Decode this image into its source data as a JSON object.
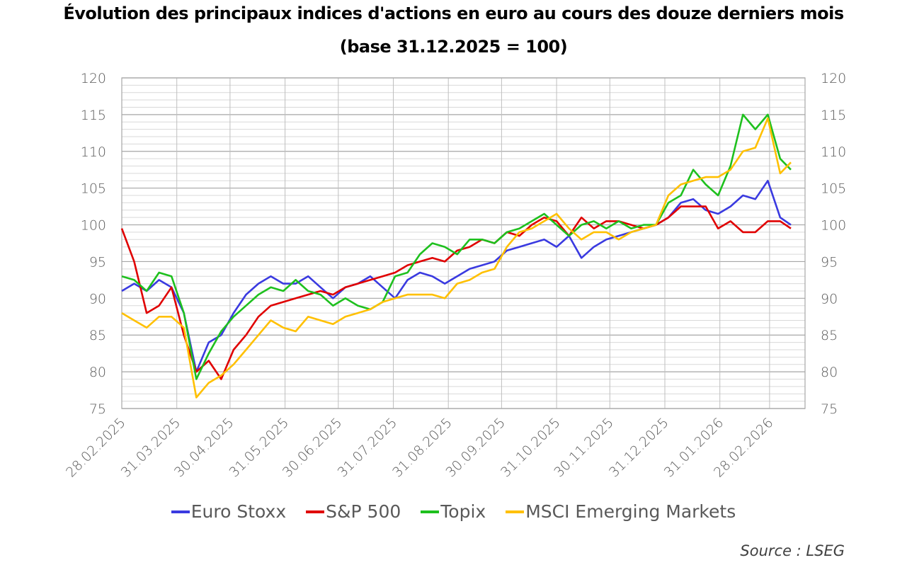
{
  "chart_data": {
    "type": "line",
    "title": "Évolution des principaux indices d'actions en euro au cours des douze derniers mois",
    "subtitle": "(base 31.12.2025 = 100)",
    "source": "Source : LSEG",
    "ylim": [
      75,
      120
    ],
    "y_ticks": [
      "75",
      "80",
      "85",
      "90",
      "95",
      "100",
      "105",
      "110",
      "115",
      "120"
    ],
    "y_axis": "both sides",
    "grid": "horizontal major every 5, minor every 1; vertical at month ends",
    "legend_position": "bottom",
    "x_ticks": [
      "28.02.2025",
      "31.03.2025",
      "30.04.2025",
      "31.05.2025",
      "30.06.2025",
      "31.07.2025",
      "31.08.2025",
      "30.09.2025",
      "31.10.2025",
      "30.11.2025",
      "31.12.2025",
      "31.01.2026",
      "28.02.2026"
    ],
    "x": [
      "28.02.2025",
      "07.03.2025",
      "14.03.2025",
      "21.03.2025",
      "28.03.2025",
      "04.04.2025",
      "11.04.2025",
      "18.04.2025",
      "25.04.2025",
      "02.05.2025",
      "09.05.2025",
      "16.05.2025",
      "23.05.2025",
      "30.05.2025",
      "06.06.2025",
      "13.06.2025",
      "20.06.2025",
      "27.06.2025",
      "04.07.2025",
      "11.07.2025",
      "18.07.2025",
      "25.07.2025",
      "01.08.2025",
      "08.08.2025",
      "15.08.2025",
      "22.08.2025",
      "29.08.2025",
      "05.09.2025",
      "12.09.2025",
      "19.09.2025",
      "26.09.2025",
      "03.10.2025",
      "10.10.2025",
      "17.10.2025",
      "24.10.2025",
      "31.10.2025",
      "07.11.2025",
      "14.11.2025",
      "21.11.2025",
      "28.11.2025",
      "05.12.2025",
      "12.12.2025",
      "19.12.2025",
      "26.12.2025",
      "02.01.2026",
      "09.01.2026",
      "16.01.2026",
      "23.01.2026",
      "30.01.2026",
      "06.02.2026",
      "13.02.2026",
      "20.02.2026",
      "27.02.2026",
      "06.03.2026",
      "12.03.2026"
    ],
    "series": [
      {
        "name": "Euro Stoxx",
        "color": "#3a3ae0",
        "values": [
          91,
          92,
          91,
          92.5,
          91.5,
          88,
          80,
          84,
          85,
          88,
          90.5,
          92,
          93,
          92,
          92,
          93,
          91.5,
          90,
          91.5,
          92,
          93,
          91.5,
          90,
          92.5,
          93.5,
          93,
          92,
          93,
          94,
          94.5,
          95,
          96.5,
          97,
          97.5,
          98,
          97,
          98.5,
          95.5,
          97,
          98,
          98.5,
          99,
          99.5,
          100,
          101,
          103,
          103.5,
          102,
          101.5,
          102.5,
          104,
          103.5,
          106,
          101,
          100
        ]
      },
      {
        "name": "S&P 500",
        "color": "#e00000",
        "values": [
          99.5,
          95,
          88,
          89,
          91.5,
          85,
          80,
          81.5,
          79,
          83,
          85,
          87.5,
          89,
          89.5,
          90,
          90.5,
          91,
          90.5,
          91.5,
          92,
          92.5,
          93,
          93.5,
          94.5,
          95,
          95.5,
          95,
          96.5,
          97,
          98,
          97.5,
          99,
          98.5,
          100,
          101,
          100.5,
          98.5,
          101,
          99.5,
          100.5,
          100.5,
          100,
          99.5,
          100,
          101,
          102.5,
          102.5,
          102.5,
          99.5,
          100.5,
          99,
          99,
          100.5,
          100.5,
          99.5
        ]
      },
      {
        "name": "Topix",
        "color": "#1ec01e",
        "values": [
          93,
          92.5,
          91,
          93.5,
          93,
          88,
          79,
          82.5,
          85.5,
          87.5,
          89,
          90.5,
          91.5,
          91,
          92.5,
          91,
          90.5,
          89,
          90,
          89,
          88.5,
          89.5,
          93,
          93.5,
          96,
          97.5,
          97,
          96,
          98,
          98,
          97.5,
          99,
          99.5,
          100.5,
          101.5,
          100,
          98.5,
          100,
          100.5,
          99.5,
          100.5,
          99.5,
          100,
          100,
          103,
          104,
          107.5,
          105.5,
          104,
          108,
          115,
          113,
          115,
          109,
          107.5
        ]
      },
      {
        "name": "MSCI Emerging Markets",
        "color": "#ffc000",
        "values": [
          88,
          87,
          86,
          87.5,
          87.5,
          86,
          76.5,
          78.5,
          79.5,
          81,
          83,
          85,
          87,
          86,
          85.5,
          87.5,
          87,
          86.5,
          87.5,
          88,
          88.5,
          89.5,
          90,
          90.5,
          90.5,
          90.5,
          90,
          92,
          92.5,
          93.5,
          94,
          97,
          99,
          99.5,
          100.5,
          101.5,
          99.5,
          98,
          99,
          99,
          98,
          99,
          99.5,
          100,
          104,
          105.5,
          106,
          106.5,
          106.5,
          107.5,
          110,
          110.5,
          114.5,
          107,
          108.5
        ]
      }
    ]
  }
}
